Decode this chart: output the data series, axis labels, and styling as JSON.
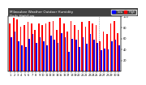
{
  "title": "Milwaukee Weather Outdoor Humidity",
  "subtitle": "Daily High/Low",
  "ylim": [
    0,
    100
  ],
  "legend_high": "High",
  "legend_low": "Low",
  "color_high": "#ff0000",
  "color_low": "#0000ff",
  "bg_top": "#404040",
  "bg_plot": "#ffffff",
  "days": [
    "1",
    "2",
    "3",
    "4",
    "5",
    "6",
    "7",
    "8",
    "9",
    "10",
    "11",
    "12",
    "13",
    "14",
    "15",
    "16",
    "17",
    "18",
    "19",
    "20",
    "21",
    "22",
    "23",
    "24",
    "25",
    "26",
    "27",
    "28",
    "29",
    "30",
    "31"
  ],
  "high": [
    88,
    98,
    95,
    82,
    85,
    90,
    88,
    75,
    88,
    85,
    88,
    90,
    92,
    75,
    98,
    88,
    72,
    92,
    85,
    75,
    90,
    82,
    92,
    88,
    85,
    55,
    72,
    68,
    88,
    92,
    70
  ],
  "low": [
    62,
    72,
    55,
    48,
    45,
    60,
    68,
    52,
    62,
    55,
    48,
    65,
    58,
    52,
    70,
    62,
    35,
    60,
    58,
    45,
    62,
    50,
    68,
    58,
    52,
    38,
    42,
    40,
    55,
    58,
    48
  ],
  "divider_index": 24.5,
  "yticks": [
    20,
    40,
    60,
    80,
    100
  ],
  "title_fontsize": 3.0,
  "tick_fontsize": 2.5,
  "bar_width": 0.38
}
